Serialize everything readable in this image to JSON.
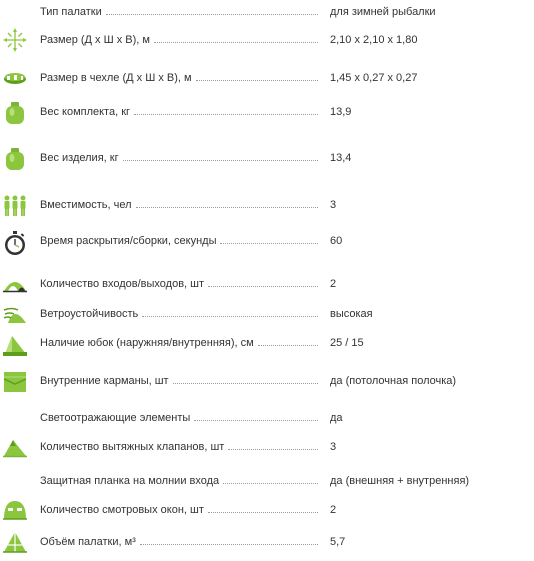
{
  "specs": [
    {
      "label": "Тип палатки",
      "value": "для зимней рыбалки",
      "icon": ""
    },
    {
      "label": "Размер (Д х Ш х В), м",
      "value": "2,10 х 2,10 х 1,80",
      "icon": "dimensions-icon"
    },
    {
      "label": "Размер в чехле (Д х Ш х В), м",
      "value": "1,45 х 0,27 х 0,27",
      "icon": "packed-bag-icon"
    },
    {
      "label": "Вес комплекта, кг",
      "value": "13,9",
      "icon": "weight-icon"
    },
    {
      "label": "Вес изделия, кг",
      "value": "13,4",
      "icon": "weight-icon"
    },
    {
      "label": "Вместимость, чел",
      "value": "3",
      "icon": "people-icon"
    },
    {
      "label": "Время раскрытия/сборки, секунды",
      "value": "60",
      "icon": "stopwatch-icon"
    },
    {
      "label": "Количество входов/выходов, шт",
      "value": "2",
      "icon": "entrance-icon"
    },
    {
      "label": "Ветроустойчивость",
      "value": "высокая",
      "icon": "wind-icon"
    },
    {
      "label": "Наличие юбок (наружняя/внутренняя), см",
      "value": "25 / 15",
      "icon": "skirt-icon"
    },
    {
      "label": "Внутренние карманы, шт",
      "value": "да (потолочная полочка)",
      "icon": "pocket-icon"
    },
    {
      "label": "Светоотражающие элементы",
      "value": "да",
      "icon": ""
    },
    {
      "label": "Количество вытяжных клапанов, шт",
      "value": "3",
      "icon": "vent-icon"
    },
    {
      "label": "Защитная планка на молнии входа",
      "value": "да (внешняя + внутренняя)",
      "icon": ""
    },
    {
      "label": "Количество смотровых окон, шт",
      "value": "2",
      "icon": "window-icon"
    },
    {
      "label": "Объём палатки, м³",
      "value": "5,7",
      "icon": "volume-icon"
    }
  ],
  "colors": {
    "accent": "#8cc63f",
    "accent_dark": "#5e9e1e",
    "text": "#333333",
    "dots": "#9c9c9c"
  }
}
